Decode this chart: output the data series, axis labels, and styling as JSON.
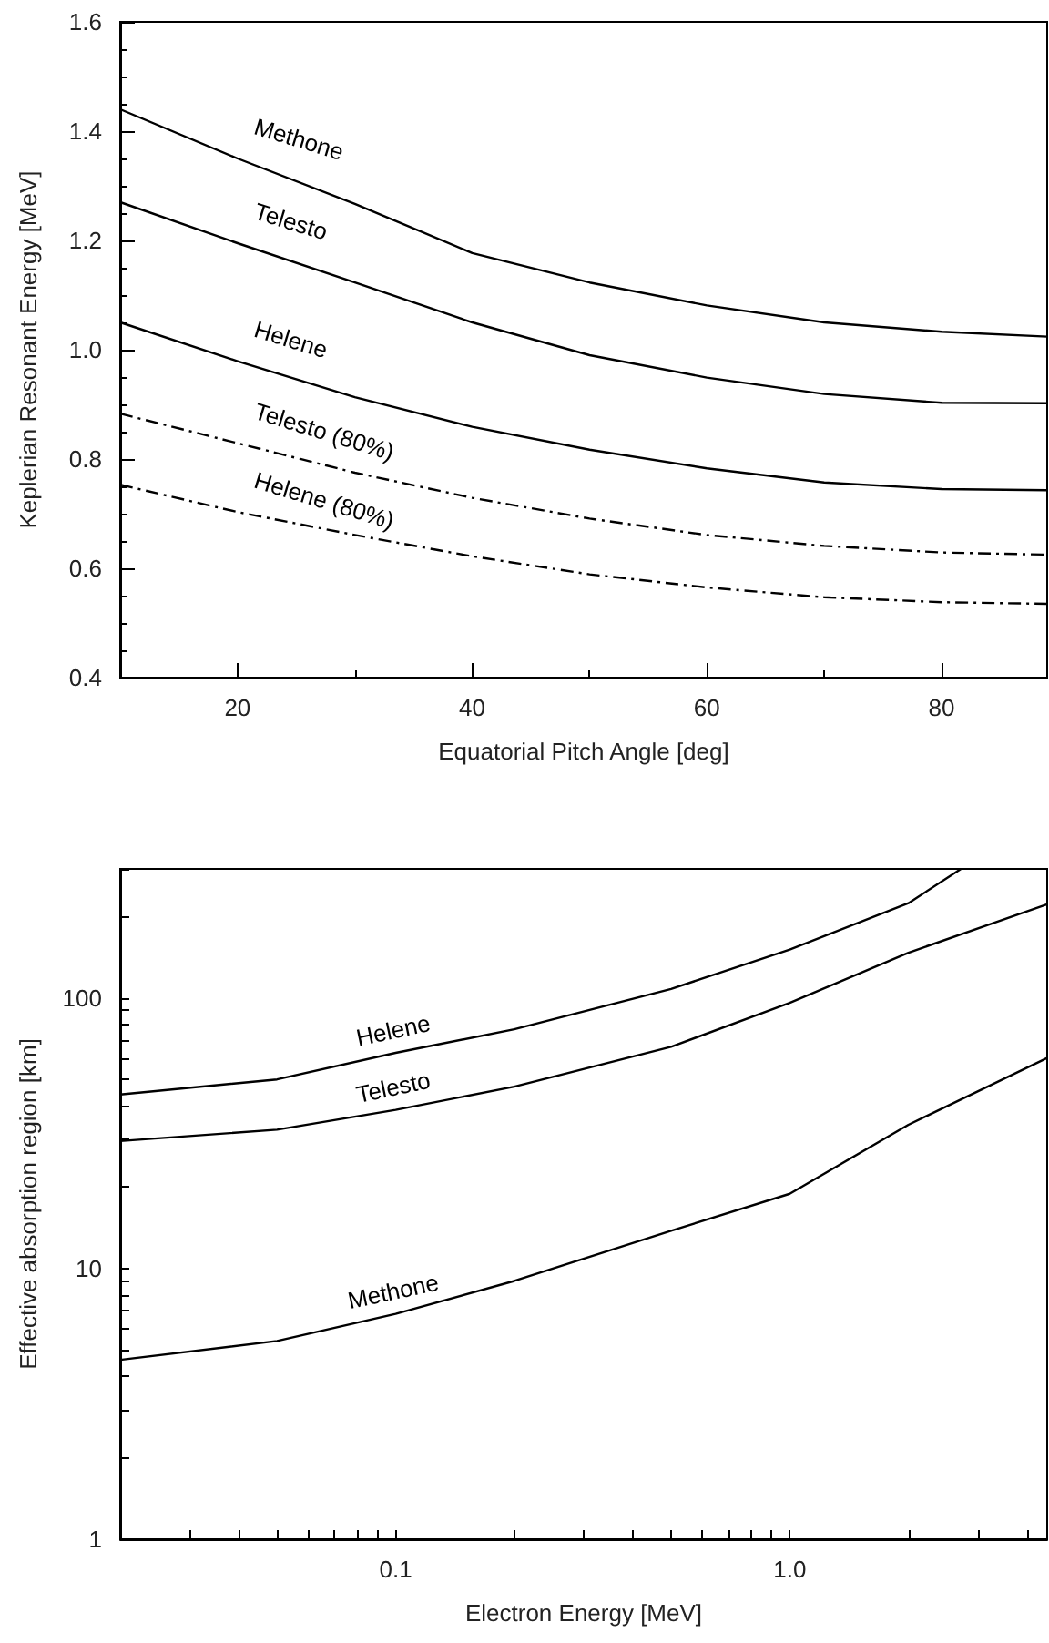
{
  "chart_data": [
    {
      "type": "line",
      "xlabel": "Equatorial Pitch Angle [deg]",
      "ylabel": "Keplerian Resonant Energy [MeV]",
      "xlim": [
        10,
        89
      ],
      "xticks": [
        20,
        40,
        60,
        80
      ],
      "ylim": [
        0.4,
        1.6
      ],
      "yticks": [
        {
          "value": 0.4,
          "label": "0.4"
        },
        {
          "value": 0.6,
          "label": "0.6"
        },
        {
          "value": 0.8,
          "label": "0.8"
        },
        {
          "value": 1.0,
          "label": "1.0"
        },
        {
          "value": 1.2,
          "label": "1.2"
        },
        {
          "value": 1.4,
          "label": "1.4"
        },
        {
          "value": 1.6,
          "label": "1.6"
        }
      ],
      "grid": false,
      "legend": false,
      "marker": "none",
      "x": [
        10,
        20,
        30,
        40,
        50,
        60,
        70,
        80,
        89
      ],
      "series": [
        {
          "name": "Methone",
          "color": "#000000",
          "line_style": "solid",
          "values": [
            1.44,
            1.35,
            1.267,
            1.177,
            1.123,
            1.081,
            1.05,
            1.033,
            1.024
          ]
        },
        {
          "name": "Telesto",
          "color": "#000000",
          "line_style": "solid",
          "values": [
            1.27,
            1.195,
            1.123,
            1.05,
            0.99,
            0.949,
            0.919,
            0.903,
            0.902
          ]
        },
        {
          "name": "Helene",
          "color": "#000000",
          "line_style": "solid",
          "values": [
            1.05,
            0.979,
            0.913,
            0.859,
            0.817,
            0.783,
            0.757,
            0.745,
            0.743
          ]
        },
        {
          "name": "Telesto (80%)",
          "color": "#000000",
          "line_style": "dashed",
          "values": [
            0.883,
            0.829,
            0.775,
            0.729,
            0.691,
            0.661,
            0.641,
            0.629,
            0.625
          ]
        },
        {
          "name": "Helene (80%)",
          "color": "#000000",
          "line_style": "dashed",
          "values": [
            0.753,
            0.703,
            0.661,
            0.622,
            0.589,
            0.565,
            0.547,
            0.538,
            0.535
          ]
        }
      ]
    },
    {
      "type": "line",
      "xlabel": "Electron Energy [MeV]",
      "ylabel": "Effective absorption region [km]",
      "log": "xy",
      "xlim": [
        0.02,
        4.5
      ],
      "xticks": [
        {
          "value": 0.1,
          "label": "0.1"
        },
        {
          "value": 1,
          "label": "1.0"
        }
      ],
      "ylim": [
        1,
        300
      ],
      "yticks": [
        1,
        10,
        100
      ],
      "grid": false,
      "legend": false,
      "marker": "none",
      "series": [
        {
          "name": "Helene",
          "color": "#000000",
          "x": [
            0.02,
            0.05,
            0.1,
            0.2,
            0.5,
            1,
            2,
            2.72
          ],
          "values": [
            44,
            50,
            62.7,
            76.6,
            108,
            151,
            224,
            300
          ]
        },
        {
          "name": "Telesto",
          "color": "#000000",
          "x": [
            0.02,
            0.05,
            0.1,
            0.2,
            0.5,
            1,
            2,
            4.5
          ],
          "values": [
            29.6,
            32.6,
            38.6,
            47,
            66,
            96,
            147,
            222
          ]
        },
        {
          "name": "Methone",
          "color": "#000000",
          "x": [
            0.02,
            0.05,
            0.1,
            0.2,
            0.5,
            1,
            2,
            4.5
          ],
          "values": [
            4.6,
            5.4,
            6.8,
            9.0,
            13.8,
            18.9,
            34,
            60
          ]
        }
      ]
    }
  ]
}
